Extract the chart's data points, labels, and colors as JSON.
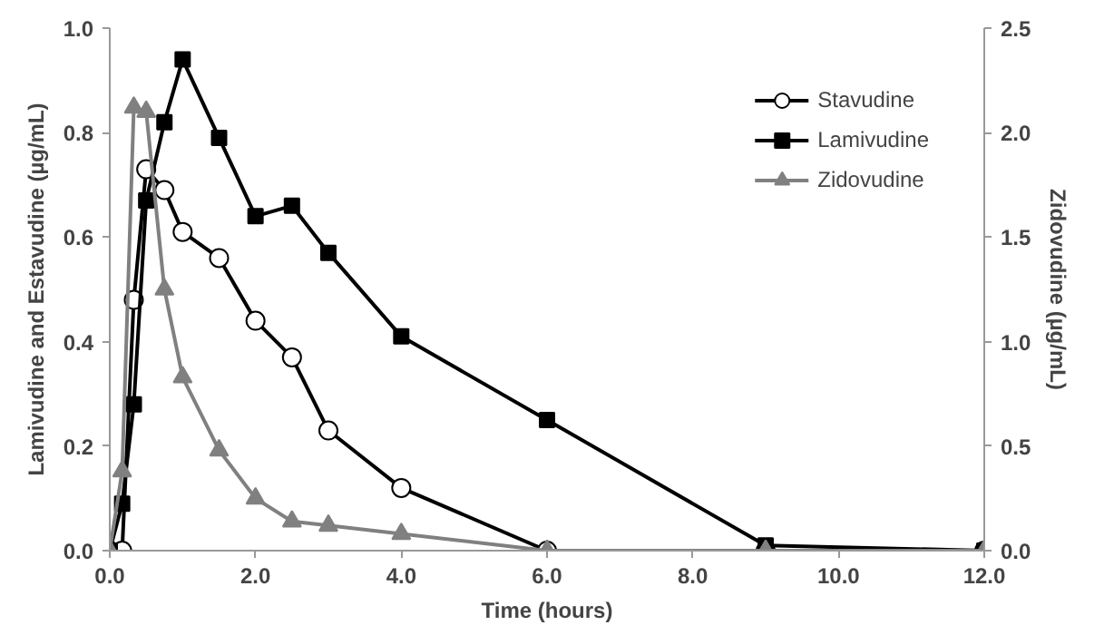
{
  "chart_data": {
    "type": "line",
    "xlabel": "Time (hours)",
    "ylabel": "Lamivudine and Estavudine (µg/mL)",
    "y2label": "Zidovudine (µg/mL)",
    "x": [
      0,
      0.17,
      0.33,
      0.5,
      0.75,
      1,
      1.5,
      2,
      2.5,
      3,
      4,
      6,
      9,
      12
    ],
    "series": [
      {
        "name": "Stavudine",
        "color": "#000000",
        "marker": "circle",
        "values": [
          0,
          0,
          0.48,
          0.73,
          0.69,
          0.61,
          0.56,
          0.44,
          0.37,
          0.23,
          0.12,
          0,
          0,
          0
        ]
      },
      {
        "name": "Lamivudine",
        "color": "#000000",
        "marker": "square",
        "values": [
          0,
          0.09,
          0.28,
          0.67,
          0.82,
          0.94,
          0.79,
          0.64,
          0.66,
          0.57,
          0.41,
          0.25,
          0.01,
          0
        ]
      },
      {
        "name": "Zidovudine",
        "color": "#808080",
        "marker": "triangle",
        "axis": "y2",
        "values": [
          0,
          0.38,
          2.12,
          2.1,
          1.25,
          0.83,
          0.48,
          0.25,
          0.14,
          0.12,
          0.08,
          0,
          0,
          0
        ]
      }
    ],
    "xlim": [
      0,
      12
    ],
    "xticks": [
      {
        "value": 0,
        "label": "0.0"
      },
      {
        "value": 2,
        "label": "2.0"
      },
      {
        "value": 4,
        "label": "4.0"
      },
      {
        "value": 6,
        "label": "6.0"
      },
      {
        "value": 8,
        "label": "8.0"
      },
      {
        "value": 10,
        "label": "10.0"
      },
      {
        "value": 12,
        "label": "12.0"
      }
    ],
    "ylim": [
      0,
      1
    ],
    "yticks": [
      {
        "value": 0,
        "label": "0.0"
      },
      {
        "value": 0.2,
        "label": "0.2"
      },
      {
        "value": 0.4,
        "label": "0.4"
      },
      {
        "value": 0.6,
        "label": "0.6"
      },
      {
        "value": 0.8,
        "label": "0.8"
      },
      {
        "value": 1,
        "label": "1.0"
      }
    ],
    "y2lim": [
      0,
      2.5
    ],
    "y2ticks": [
      {
        "value": 0,
        "label": "0.0"
      },
      {
        "value": 0.5,
        "label": "0.5"
      },
      {
        "value": 1,
        "label": "1.0"
      },
      {
        "value": 1.5,
        "label": "1.5"
      },
      {
        "value": 2,
        "label": "2.0"
      },
      {
        "value": 2.5,
        "label": "2.5"
      }
    ],
    "grid": false,
    "legend": "top right"
  }
}
